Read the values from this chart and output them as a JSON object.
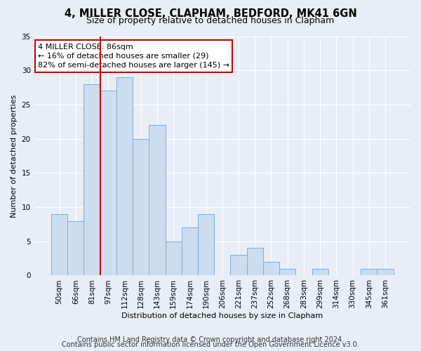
{
  "title_line1": "4, MILLER CLOSE, CLAPHAM, BEDFORD, MK41 6GN",
  "title_line2": "Size of property relative to detached houses in Clapham",
  "xlabel": "Distribution of detached houses by size in Clapham",
  "ylabel": "Number of detached properties",
  "bar_labels": [
    "50sqm",
    "66sqm",
    "81sqm",
    "97sqm",
    "112sqm",
    "128sqm",
    "143sqm",
    "159sqm",
    "174sqm",
    "190sqm",
    "206sqm",
    "221sqm",
    "237sqm",
    "252sqm",
    "268sqm",
    "283sqm",
    "299sqm",
    "314sqm",
    "330sqm",
    "345sqm",
    "361sqm"
  ],
  "bar_values": [
    9,
    8,
    28,
    27,
    29,
    20,
    22,
    5,
    7,
    9,
    0,
    3,
    4,
    2,
    1,
    0,
    1,
    0,
    0,
    1,
    1
  ],
  "bar_color": "#ccddf0",
  "bar_edge_color": "#7bafd4",
  "vline_color": "#cc0000",
  "vline_x_index": 2,
  "annotation_text": "4 MILLER CLOSE: 86sqm\n← 16% of detached houses are smaller (29)\n82% of semi-detached houses are larger (145) →",
  "annotation_box_color": "#ffffff",
  "annotation_box_edge": "#cc0000",
  "ylim": [
    0,
    35
  ],
  "yticks": [
    0,
    5,
    10,
    15,
    20,
    25,
    30,
    35
  ],
  "footnote_line1": "Contains HM Land Registry data © Crown copyright and database right 2024.",
  "footnote_line2": "Contains public sector information licensed under the Open Government Licence v3.0.",
  "background_color": "#e8eef8",
  "plot_background_color": "#e8eef8",
  "grid_color": "#ffffff",
  "title_fontsize": 10.5,
  "subtitle_fontsize": 9,
  "axis_fontsize": 8,
  "tick_fontsize": 7.5,
  "footnote_fontsize": 7
}
